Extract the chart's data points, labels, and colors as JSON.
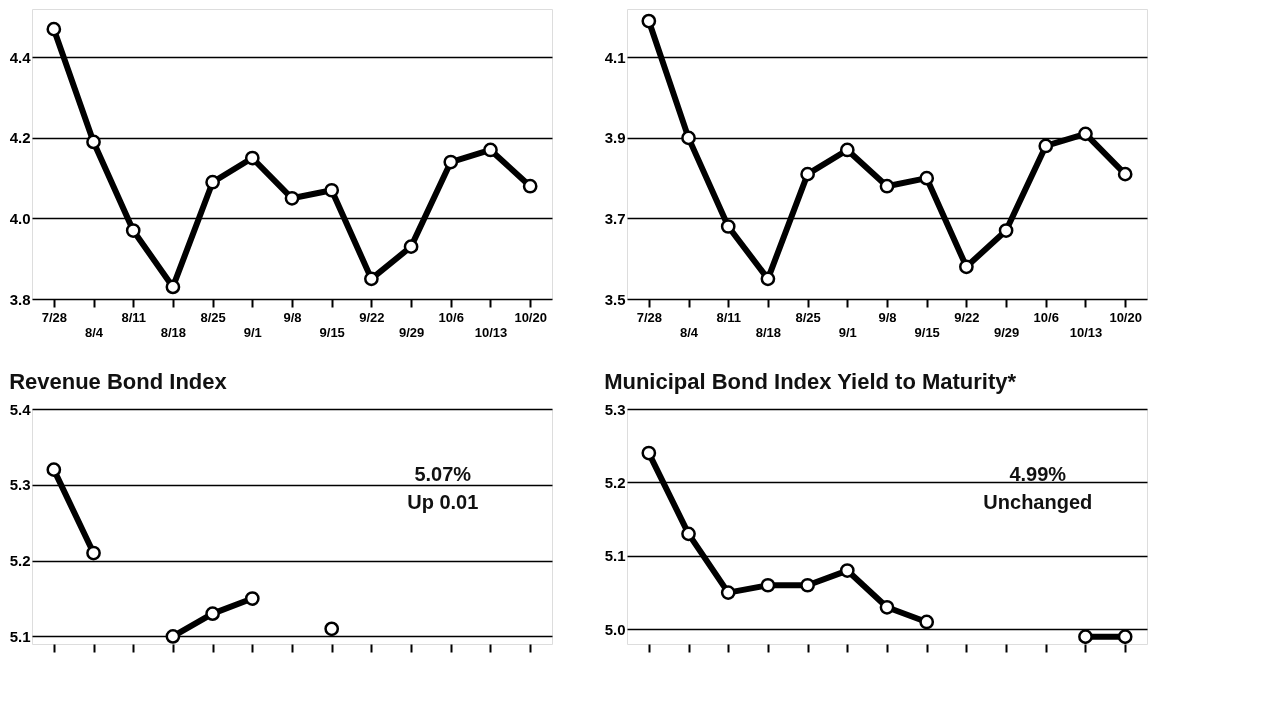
{
  "chart_data": [
    {
      "type": "line",
      "categories": [
        "7/28",
        "8/4",
        "8/11",
        "8/18",
        "8/25",
        "9/1",
        "9/8",
        "9/15",
        "9/22",
        "9/29",
        "10/6",
        "10/13",
        "10/20"
      ],
      "series": [
        {
          "color": "#000000",
          "values": [
            4.47,
            4.19,
            3.97,
            3.83,
            4.09,
            4.15,
            4.05,
            4.07,
            3.85,
            3.93,
            4.14,
            4.17,
            4.08
          ]
        }
      ],
      "ylim": [
        3.8,
        4.52
      ],
      "yticks": [
        {
          "value": 3.8,
          "label": "3.8"
        },
        {
          "value": 4.0,
          "label": "4.0"
        },
        {
          "value": 4.2,
          "label": "4.2"
        },
        {
          "value": 4.4,
          "label": "4.4"
        }
      ],
      "grid": "y",
      "marker": "circle",
      "line_style": "solid"
    },
    {
      "type": "line",
      "categories": [
        "7/28",
        "8/4",
        "8/11",
        "8/18",
        "8/25",
        "9/1",
        "9/8",
        "9/15",
        "9/22",
        "9/29",
        "10/6",
        "10/13",
        "10/20"
      ],
      "series": [
        {
          "color": "#000000",
          "values": [
            4.19,
            3.9,
            3.68,
            3.55,
            3.81,
            3.87,
            3.78,
            3.8,
            3.58,
            3.67,
            3.88,
            3.91,
            3.81
          ]
        }
      ],
      "ylim": [
        3.5,
        4.22
      ],
      "yticks": [
        3.5,
        3.7,
        3.9,
        4.1
      ],
      "grid": "y",
      "marker": "circle",
      "line_style": "solid"
    },
    {
      "type": "line",
      "title": "Revenue Bond Index",
      "categories": [
        null,
        null,
        null,
        null,
        null,
        null,
        null,
        null,
        null,
        null,
        null,
        null,
        null
      ],
      "series": [
        {
          "color": "#000000",
          "values": [
            5.32,
            5.21,
            null,
            5.1,
            5.13,
            5.15,
            null,
            5.11,
            null,
            null,
            null,
            null,
            null
          ]
        }
      ],
      "ylim": [
        5.09,
        5.4
      ],
      "yticks": [
        5.1,
        5.2,
        5.3,
        5.4
      ],
      "grid": "y",
      "marker": "circle",
      "line_style": "solid",
      "tick_labels": "y",
      "annotations": [
        "5.07%",
        "Up 0.01"
      ]
    },
    {
      "type": "line",
      "title": "Municipal Bond Index Yield to Maturity*",
      "categories": [
        null,
        null,
        null,
        null,
        null,
        null,
        null,
        null,
        null,
        null,
        null,
        null,
        null
      ],
      "series": [
        {
          "color": "#000000",
          "values": [
            5.24,
            5.13,
            5.05,
            5.06,
            5.06,
            5.08,
            5.03,
            5.01,
            null,
            null,
            null,
            4.99,
            4.99
          ]
        }
      ],
      "ylim": [
        4.98,
        5.3
      ],
      "yticks": [
        {
          "value": 5.0,
          "label": "5.0"
        },
        5.1,
        5.2,
        5.3
      ],
      "grid": "y",
      "marker": "circle",
      "line_style": "solid",
      "tick_labels": "y",
      "annotations": [
        "4.99%",
        "Unchanged"
      ]
    }
  ]
}
